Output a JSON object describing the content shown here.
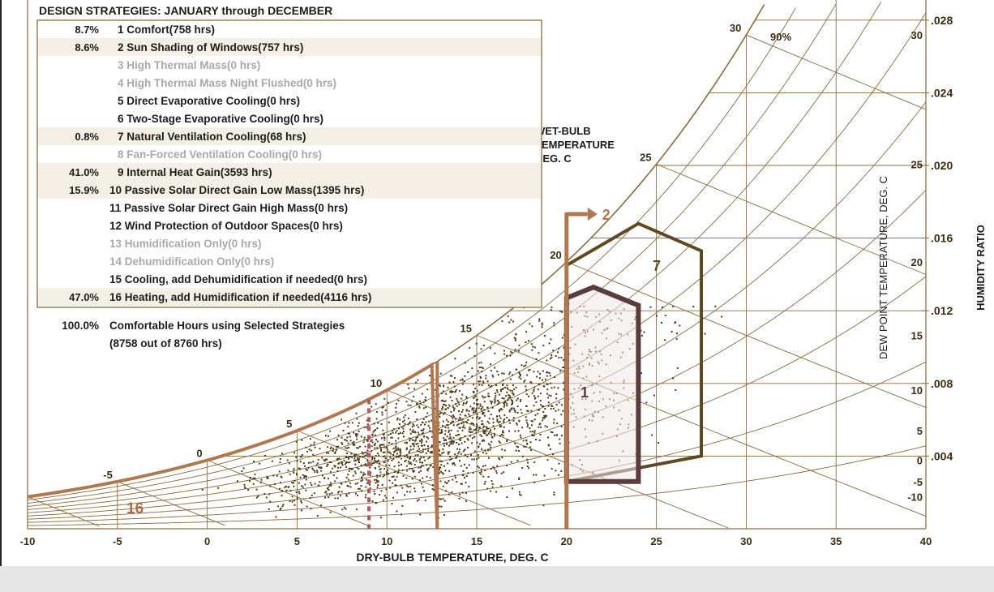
{
  "legend_title": "DESIGN STRATEGIES:  JANUARY through DECEMBER",
  "strategies": [
    {
      "pct": "8.7%",
      "label": "1 Comfort(758 hrs)",
      "active": true,
      "shaded": false
    },
    {
      "pct": "8.6%",
      "label": "2 Sun Shading of Windows(757 hrs)",
      "active": true,
      "shaded": true
    },
    {
      "pct": "",
      "label": "3 High Thermal Mass(0 hrs)",
      "active": false,
      "shaded": false
    },
    {
      "pct": "",
      "label": "4 High Thermal Mass Night Flushed(0 hrs)",
      "active": false,
      "shaded": false
    },
    {
      "pct": "",
      "label": "5 Direct Evaporative Cooling(0 hrs)",
      "active": true,
      "shaded": false
    },
    {
      "pct": "",
      "label": "6 Two-Stage Evaporative Cooling(0 hrs)",
      "active": true,
      "shaded": false
    },
    {
      "pct": "0.8%",
      "label": "7 Natural Ventilation Cooling(68 hrs)",
      "active": true,
      "shaded": true
    },
    {
      "pct": "",
      "label": "8 Fan-Forced Ventilation Cooling(0 hrs)",
      "active": false,
      "shaded": false
    },
    {
      "pct": "41.0%",
      "label": "9 Internal Heat Gain(3593 hrs)",
      "active": true,
      "shaded": true
    },
    {
      "pct": "15.9%",
      "label": "10 Passive Solar Direct Gain Low Mass(1395 hrs)",
      "active": true,
      "shaded": true
    },
    {
      "pct": "",
      "label": "11 Passive Solar Direct Gain High Mass(0 hrs)",
      "active": true,
      "shaded": false
    },
    {
      "pct": "",
      "label": "12 Wind Protection of Outdoor Spaces(0 hrs)",
      "active": true,
      "shaded": false
    },
    {
      "pct": "",
      "label": "13 Humidification Only(0 hrs)",
      "active": false,
      "shaded": false
    },
    {
      "pct": "",
      "label": "14 Dehumidification Only(0 hrs)",
      "active": false,
      "shaded": false
    },
    {
      "pct": "",
      "label": "15 Cooling, add Dehumidification if needed(0 hrs)",
      "active": true,
      "shaded": false
    },
    {
      "pct": "47.0%",
      "label": "16 Heating, add Humidification if needed(4116 hrs)",
      "active": true,
      "shaded": true
    }
  ],
  "summary": {
    "pct": "100.0%",
    "line1": "Comfortable Hours using Selected Strategies",
    "line2": "(8758 out of 8760 hrs)"
  },
  "wet_bulb_label": [
    "WET-BULB",
    "TEMPERATURE",
    "DEG. C"
  ],
  "rh_label": "90%",
  "colors": {
    "brown": "#8a6a40",
    "dark_text": "#1c1c1c",
    "grey_text": "#a9a9a9",
    "row_shade": "#f4efe4",
    "zone_comfort": "#5a3c3a",
    "zone_vent": "#5d4a22",
    "zone_heating": "#b07850",
    "dots": "#4d3c18"
  },
  "chart_data": {
    "type": "scatter",
    "title": "DESIGN STRATEGIES:  JANUARY through DECEMBER",
    "xlabel": "DRY-BULB TEMPERATURE, DEG. C",
    "ylabel": "HUMIDITY RATIO",
    "y2label": "DEW POINT TEMPERATURE, DEG. C",
    "xlim": [
      -10,
      40
    ],
    "ylim": [
      0,
      0.03
    ],
    "x_ticks": [
      -10,
      -5,
      0,
      5,
      10,
      15,
      20,
      25,
      30,
      35,
      40
    ],
    "y_ticks": [
      0.004,
      0.008,
      0.012,
      0.016,
      0.02,
      0.024,
      0.028
    ],
    "y_tick_labels": [
      ".004",
      ".008",
      ".012",
      ".016",
      ".020",
      ".024",
      ".028"
    ],
    "dew_point_ticks": [
      -10,
      -5,
      0,
      5,
      10,
      15,
      20,
      25,
      30
    ],
    "wet_bulb_labels": [
      -5,
      0,
      5,
      10,
      15,
      20,
      25,
      30
    ],
    "zones": [
      {
        "id": "1",
        "label": "1",
        "points": [
          [
            20,
            0.0026
          ],
          [
            24,
            0.0026
          ],
          [
            24,
            0.0123
          ],
          [
            21.5,
            0.0133
          ],
          [
            20,
            0.0127
          ]
        ]
      },
      {
        "id": "7",
        "label": "7",
        "points": [
          [
            20,
            0.0026
          ],
          [
            27.5,
            0.004
          ],
          [
            27.5,
            0.0153
          ],
          [
            24,
            0.0168
          ],
          [
            20,
            0.0145
          ]
        ]
      },
      {
        "id": "16",
        "label": "16",
        "points": [
          [
            -10,
            0.0011
          ],
          [
            12.8,
            0.0092
          ],
          [
            12.8,
            0.0
          ]
        ]
      },
      {
        "id": "2",
        "label": "2",
        "vertical_x": 20
      }
    ],
    "hourly_points": 8760,
    "scatter_region": {
      "x_range": [
        -5,
        30
      ],
      "y_range": [
        0.0005,
        0.012
      ]
    }
  }
}
